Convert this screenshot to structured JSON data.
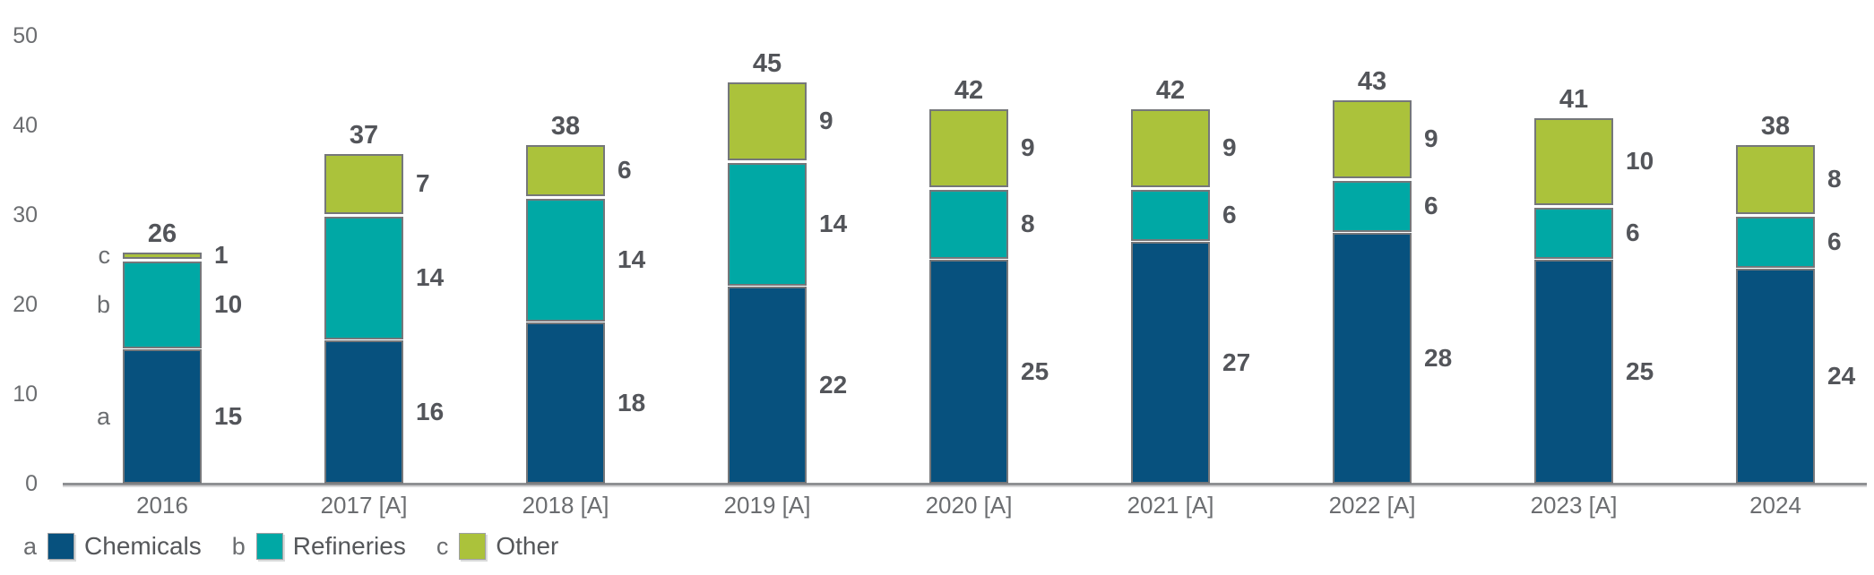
{
  "chart_data": {
    "type": "bar",
    "stacked": true,
    "categories": [
      "2016",
      "2017 [A]",
      "2018 [A]",
      "2019 [A]",
      "2020 [A]",
      "2021 [A]",
      "2022 [A]",
      "2023 [A]",
      "2024"
    ],
    "series": [
      {
        "letter": "a",
        "name": "Chemicals",
        "color": "#07517e",
        "values": [
          15,
          16,
          18,
          22,
          25,
          27,
          28,
          25,
          24
        ]
      },
      {
        "letter": "b",
        "name": "Refineries",
        "color": "#00a8a5",
        "values": [
          10,
          14,
          14,
          14,
          8,
          6,
          6,
          6,
          6
        ]
      },
      {
        "letter": "c",
        "name": "Other",
        "color": "#abc23b",
        "values": [
          1,
          7,
          6,
          9,
          9,
          9,
          9,
          10,
          8
        ]
      }
    ],
    "totals": [
      26,
      37,
      38,
      45,
      42,
      42,
      43,
      41,
      38
    ],
    "yticks": [
      0,
      10,
      20,
      30,
      40,
      50
    ],
    "ylim": [
      0,
      50
    ],
    "grid": false,
    "legend_position": "bottom-left",
    "value_labels": "right-of-each-segment",
    "total_labels": "above-bar",
    "series_letters_shown_left_of_first_bar": true
  }
}
